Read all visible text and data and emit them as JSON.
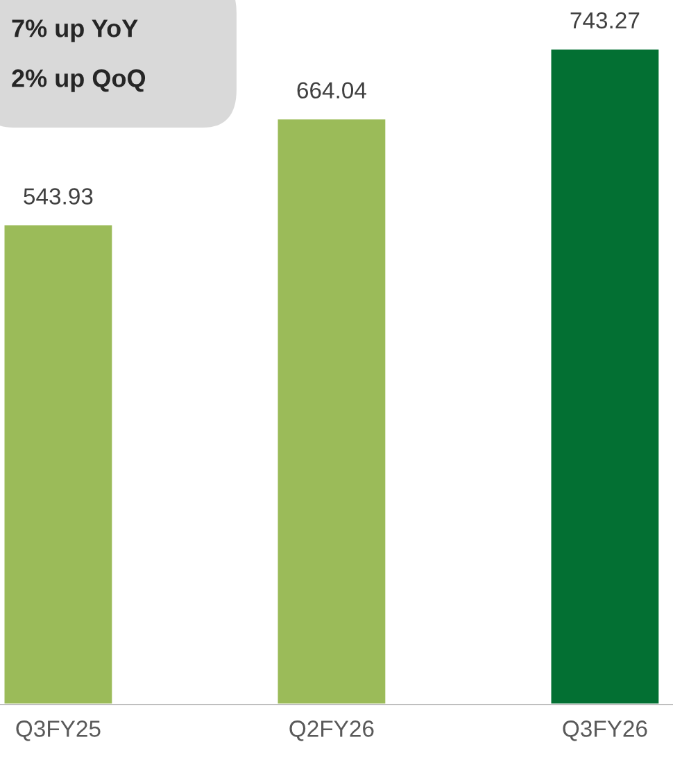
{
  "chart_data": {
    "type": "bar",
    "categories": [
      "Q3FY25",
      "Q2FY26",
      "Q3FY26"
    ],
    "values": [
      543.93,
      664.04,
      743.27
    ],
    "colors": [
      "#9bbb59",
      "#9bbb59",
      "#037033"
    ],
    "data_labels": true,
    "annotations": [
      "7% up YoY",
      "2% up QoQ"
    ],
    "grid": false,
    "legend": false
  }
}
